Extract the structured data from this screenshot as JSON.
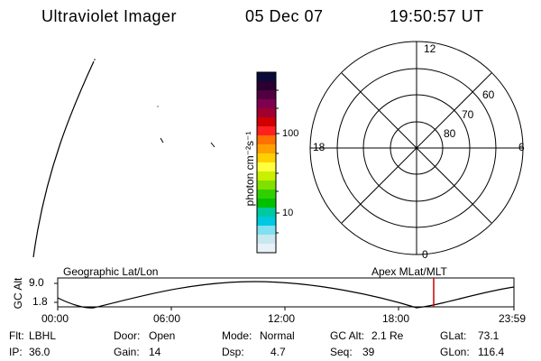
{
  "header": {
    "title": "Ultraviolet Imager",
    "date": "05 Dec 07",
    "time": "19:50:57 UT"
  },
  "colorbar": {
    "axis_label": "photon cm⁻²s⁻¹",
    "ticks": [
      "100",
      "10"
    ],
    "colors": [
      "#0a0a3a",
      "#2a0030",
      "#500040",
      "#800050",
      "#a00030",
      "#d00000",
      "#ff2020",
      "#ff7000",
      "#ffa000",
      "#ffd000",
      "#ffff40",
      "#c8f000",
      "#80e000",
      "#30d000",
      "#00c000",
      "#00c8a0",
      "#00c8e0",
      "#80e0f0",
      "#c8e8f0",
      "#e8f0f8"
    ]
  },
  "polar_plot": {
    "mlt_labels": {
      "top": "12",
      "bottom": "0",
      "left": "18",
      "right": "6"
    },
    "lat_labels": [
      "60",
      "70",
      "80"
    ]
  },
  "timeline": {
    "title_left": "Geographic Lat/Lon",
    "title_right": "Apex  MLat/MLT",
    "y_axis_label": "GC Alt",
    "y_ticks": [
      "9.0",
      "1.8"
    ],
    "x_ticks": [
      "00:00",
      "06:00",
      "12:00",
      "18:00",
      "23:59"
    ],
    "marker_color": "#cc0000"
  },
  "info": {
    "flt_label": "Flt:",
    "flt_value": "LBHL",
    "ip_label": "IP:",
    "ip_value": "36.0",
    "door_label": "Door:",
    "door_value": "Open",
    "gain_label": "Gain:",
    "gain_value": "14",
    "mode_label": "Mode:",
    "mode_value": "Normal",
    "dsp_label": "Dsp:",
    "dsp_value": "4.7",
    "gcalt_label": "GC Alt:",
    "gcalt_value": "2.1 Re",
    "seq_label": "Seq:",
    "seq_value": "39",
    "glat_label": "GLat:",
    "glat_value": "73.1",
    "glon_label": "GLon:",
    "glon_value": "116.4"
  }
}
